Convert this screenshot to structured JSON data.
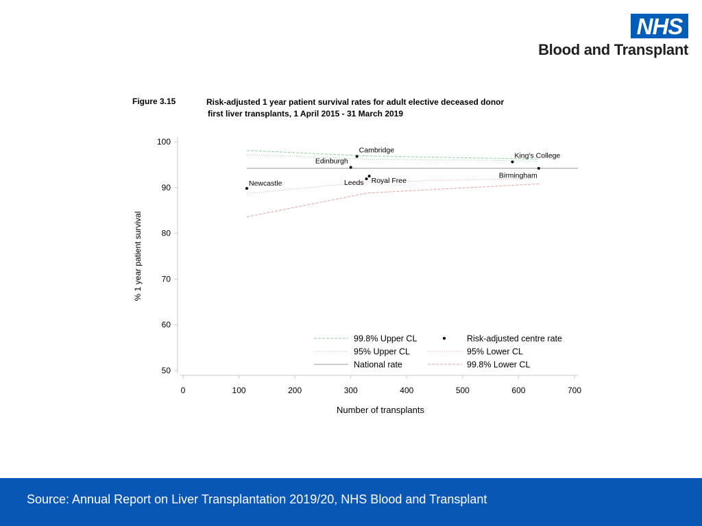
{
  "logo": {
    "mark": "NHS",
    "subtitle": "Blood and Transplant",
    "color": "#005eb8"
  },
  "figure": {
    "label": "Figure 3.15",
    "title_line1": "Risk-adjusted 1 year patient survival rates for adult elective deceased donor",
    "title_line2": "first liver transplants, 1 April 2015 - 31 March 2019"
  },
  "chart_data": {
    "type": "scatter",
    "title": "Risk-adjusted 1 year patient survival rates for adult elective deceased donor first liver transplants, 1 April 2015 - 31 March 2019",
    "xlabel": "Number of transplants",
    "ylabel": "% 1 year patient survival",
    "xlim": [
      0,
      700
    ],
    "ylim": [
      50,
      100
    ],
    "xticks": [
      0,
      100,
      200,
      300,
      400,
      500,
      600,
      700
    ],
    "yticks": [
      50,
      60,
      70,
      80,
      90,
      100
    ],
    "national_rate": 94.2,
    "centres": [
      {
        "name": "Newcastle",
        "label": "Newcastle",
        "x": 114,
        "y": 89.8
      },
      {
        "name": "Edinburgh",
        "label": "Edinburgh",
        "x": 300,
        "y": 94.4
      },
      {
        "name": "Cambridge",
        "label": "Cambridge",
        "x": 311,
        "y": 96.8
      },
      {
        "name": "Leeds",
        "label": "Leeds",
        "x": 328,
        "y": 91.9
      },
      {
        "name": "Royal Free",
        "label": "Royal Free",
        "x": 333,
        "y": 92.5
      },
      {
        "name": "King's College",
        "label": "King's College",
        "x": 589,
        "y": 95.6
      },
      {
        "name": "Birmingham",
        "label": "Birmingham",
        "x": 636,
        "y": 94.2
      }
    ],
    "control_limits": [
      {
        "name": "99.8% Upper CL",
        "color": "#8fcf9a",
        "dash": "4,2",
        "x": [
          114,
          330,
          636
        ],
        "y": [
          98.1,
          96.9,
          96.2
        ]
      },
      {
        "name": "95% Upper CL",
        "color": "#8fcf9a",
        "dash": "1,2",
        "x": [
          114,
          330,
          636
        ],
        "y": [
          97.2,
          96.2,
          95.8
        ]
      },
      {
        "name": "95% Lower CL",
        "color": "#e8a0a0",
        "dash": "1,2",
        "x": [
          114,
          330,
          636
        ],
        "y": [
          88.7,
          91.2,
          92.0
        ]
      },
      {
        "name": "99.8% Lower CL",
        "color": "#e8a0a0",
        "dash": "4,2",
        "x": [
          114,
          330,
          636
        ],
        "y": [
          83.6,
          88.8,
          90.8
        ]
      }
    ],
    "legend": [
      {
        "label": "99.8% Upper CL",
        "kind": "line",
        "color": "#8fcf9a",
        "dash": "4,2"
      },
      {
        "label": "Risk-adjusted centre rate",
        "kind": "dot",
        "color": "#000000"
      },
      {
        "label": "95% Upper CL",
        "kind": "line",
        "color": "#8fcf9a",
        "dash": "1,2"
      },
      {
        "label": "95% Lower CL",
        "kind": "line",
        "color": "#e8a0a0",
        "dash": "1,2"
      },
      {
        "label": "National rate",
        "kind": "line",
        "color": "#999999",
        "dash": ""
      },
      {
        "label": "99.8% Lower CL",
        "kind": "line",
        "color": "#e8a0a0",
        "dash": "4,2"
      }
    ],
    "legend_position": "bottom-right"
  },
  "footer": {
    "source": "Source: Annual Report on Liver Transplantation 2019/20, NHS Blood and Transplant",
    "background": "#0857b4"
  }
}
